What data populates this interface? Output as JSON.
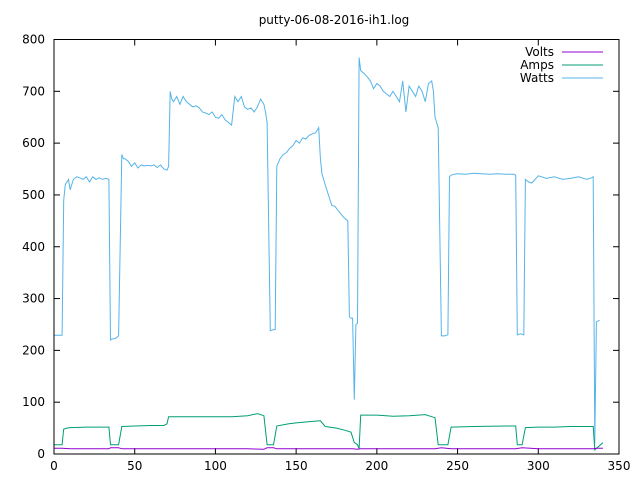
{
  "chart_data": {
    "type": "line",
    "title": "putty-06-08-2016-ih1.log",
    "xlabel": "",
    "ylabel": "",
    "xlim": [
      0,
      350
    ],
    "ylim": [
      0,
      800
    ],
    "xticks": [
      0,
      50,
      100,
      150,
      200,
      250,
      300,
      350
    ],
    "yticks": [
      0,
      100,
      200,
      300,
      400,
      500,
      600,
      700,
      800
    ],
    "grid": false,
    "legend_position": "top-right",
    "series": [
      {
        "name": "Volts",
        "color": "#9400d3",
        "x": [
          0,
          5,
          10,
          20,
          30,
          34,
          35,
          40,
          42,
          50,
          60,
          70,
          80,
          100,
          120,
          130,
          132,
          136,
          138,
          150,
          170,
          185,
          188,
          190,
          200,
          220,
          236,
          240,
          246,
          260,
          280,
          286,
          290,
          300,
          320,
          334,
          336,
          340
        ],
        "y": [
          11,
          11,
          10,
          10,
          10,
          10,
          12,
          12,
          10,
          10,
          10,
          10,
          10,
          10,
          10,
          9,
          12,
          12,
          10,
          10,
          10,
          10,
          9,
          10,
          10,
          10,
          10,
          12,
          10,
          10,
          10,
          10,
          12,
          10,
          10,
          10,
          11,
          11
        ]
      },
      {
        "name": "Amps",
        "color": "#009e73",
        "x": [
          0,
          5,
          6,
          8,
          10,
          20,
          30,
          34,
          35,
          40,
          42,
          50,
          60,
          68,
          70,
          71,
          80,
          90,
          100,
          110,
          120,
          126,
          130,
          132,
          136,
          138,
          145,
          150,
          160,
          165,
          168,
          175,
          180,
          184,
          186,
          188,
          189,
          190,
          200,
          210,
          220,
          230,
          234,
          236,
          238,
          244,
          246,
          260,
          280,
          286,
          287,
          290,
          292,
          300,
          310,
          320,
          334,
          335,
          340
        ],
        "y": [
          18,
          18,
          48,
          50,
          51,
          52,
          52,
          52,
          18,
          18,
          53,
          54,
          55,
          55,
          58,
          72,
          72,
          72,
          72,
          72,
          74,
          78,
          74,
          18,
          18,
          54,
          58,
          60,
          63,
          64,
          53,
          50,
          46,
          42,
          22,
          18,
          10,
          75,
          75,
          73,
          74,
          76,
          72,
          70,
          18,
          18,
          52,
          53,
          54,
          54,
          18,
          18,
          51,
          52,
          52,
          53,
          53,
          8,
          22
        ]
      },
      {
        "name": "Watts",
        "color": "#56b4e9",
        "x": [
          0,
          5,
          6,
          7,
          8,
          9,
          10,
          12,
          14,
          16,
          18,
          20,
          22,
          24,
          26,
          28,
          30,
          32,
          34,
          35,
          36,
          38,
          40,
          42,
          43,
          44,
          46,
          48,
          50,
          52,
          54,
          56,
          58,
          60,
          62,
          64,
          66,
          68,
          70,
          71,
          72,
          73,
          74,
          76,
          78,
          80,
          82,
          84,
          86,
          88,
          90,
          92,
          94,
          96,
          98,
          100,
          102,
          104,
          106,
          108,
          110,
          112,
          114,
          116,
          118,
          120,
          122,
          124,
          126,
          128,
          130,
          131,
          132,
          134,
          136,
          137,
          138,
          140,
          142,
          144,
          146,
          148,
          150,
          152,
          154,
          156,
          158,
          160,
          162,
          163,
          164,
          165,
          166,
          168,
          170,
          172,
          174,
          176,
          178,
          180,
          182,
          183,
          184,
          185,
          186,
          187,
          188,
          189,
          190,
          192,
          194,
          196,
          198,
          200,
          202,
          204,
          206,
          208,
          210,
          212,
          214,
          216,
          218,
          220,
          222,
          224,
          226,
          228,
          230,
          232,
          234,
          235,
          236,
          237,
          238,
          240,
          242,
          244,
          245,
          246,
          248,
          250,
          255,
          260,
          265,
          270,
          275,
          280,
          285,
          286,
          287,
          289,
          291,
          292,
          294,
          296,
          298,
          300,
          305,
          310,
          315,
          320,
          325,
          330,
          333,
          334,
          335,
          336,
          338
        ],
        "y": [
          229,
          229,
          490,
          520,
          525,
          530,
          510,
          530,
          535,
          533,
          530,
          535,
          525,
          535,
          530,
          533,
          530,
          532,
          530,
          220,
          222,
          223,
          228,
          578,
          570,
          570,
          565,
          555,
          562,
          552,
          558,
          556,
          557,
          556,
          558,
          553,
          558,
          550,
          548,
          555,
          700,
          685,
          680,
          690,
          675,
          690,
          680,
          675,
          670,
          672,
          668,
          660,
          658,
          655,
          660,
          650,
          648,
          655,
          645,
          640,
          635,
          690,
          680,
          690,
          670,
          665,
          668,
          660,
          670,
          685,
          675,
          660,
          640,
          238,
          240,
          240,
          555,
          570,
          578,
          582,
          590,
          595,
          605,
          600,
          610,
          608,
          615,
          618,
          620,
          625,
          630,
          570,
          540,
          520,
          500,
          480,
          478,
          470,
          462,
          455,
          450,
          265,
          262,
          262,
          105,
          250,
          252,
          765,
          740,
          735,
          728,
          720,
          705,
          715,
          710,
          700,
          695,
          690,
          700,
          690,
          680,
          720,
          660,
          710,
          700,
          690,
          710,
          700,
          680,
          715,
          720,
          700,
          650,
          640,
          630,
          228,
          228,
          230,
          535,
          538,
          540,
          541,
          540,
          542,
          541,
          540,
          541,
          540,
          540,
          538,
          230,
          232,
          230,
          530,
          525,
          523,
          530,
          537,
          532,
          535,
          530,
          532,
          535,
          530,
          533,
          535,
          20,
          255,
          258
        ]
      }
    ]
  }
}
